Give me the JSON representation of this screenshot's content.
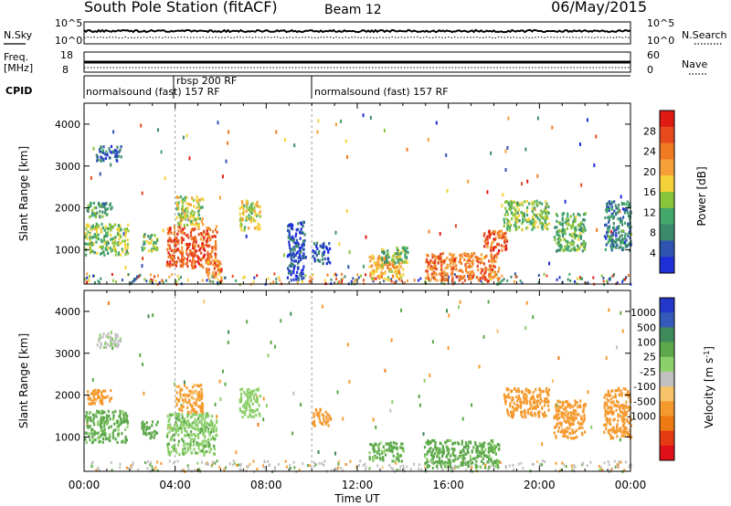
{
  "header": {
    "title": "South Pole Station (fitACF)",
    "beam": "Beam 12",
    "date": "06/May/2015"
  },
  "noise_panel": {
    "left_label": "N.Sky",
    "right_label": "N.Search",
    "left_ticks": [
      "10^5",
      "10^0"
    ],
    "right_ticks": [
      "10^5",
      "10^0"
    ]
  },
  "freq_panel": {
    "left_label_line1": "Freq.",
    "left_label_line2": "[MHz]",
    "right_label": "Nave",
    "left_ticks": [
      "18",
      "8"
    ],
    "right_ticks": [
      "60",
      "0"
    ]
  },
  "cpid": {
    "label": "CPID",
    "segments": [
      {
        "start_hour": 0,
        "end_hour": 4,
        "label": "normalsound (fast) 157 RF"
      },
      {
        "start_hour": 4,
        "end_hour": 10,
        "label": "rbsp 200 RF"
      },
      {
        "start_hour": 10,
        "end_hour": 24,
        "label": "normalsound (fast) 157 RF"
      }
    ]
  },
  "colors": {
    "power_scale": [
      "#1f2fd8",
      "#2e54b0",
      "#3c8a6c",
      "#43a66a",
      "#8ac43a",
      "#f6d23a",
      "#f6a03a",
      "#f07a22",
      "#e64a1e",
      "#e01b14"
    ],
    "velocity_scale": [
      "#2337c8",
      "#3559b8",
      "#3f8a5a",
      "#5ca84a",
      "#8cd06a",
      "#c0c0c0",
      "#f6c36a",
      "#f59a2e",
      "#ee7a14",
      "#e63a12",
      "#e0101a"
    ]
  },
  "chart_data": [
    {
      "type": "heatmap",
      "title": "Power",
      "ylabel": "Slant Range [km]",
      "xlabel": "Time UT",
      "xlim_hours": [
        0,
        24
      ],
      "ylim": [
        180,
        4500
      ],
      "x_ticks": [
        "00:00",
        "04:00",
        "08:00",
        "12:00",
        "16:00",
        "20:00",
        "00:00"
      ],
      "y_ticks": [
        1000,
        2000,
        3000,
        4000
      ],
      "colorbar": {
        "label": "Power [dB]",
        "ticks": [
          4,
          8,
          12,
          16,
          20,
          24,
          28
        ],
        "range": [
          0,
          32
        ]
      },
      "regions": [
        {
          "t0": 0.0,
          "t1": 1.9,
          "r0": 900,
          "r1": 1650,
          "value": 14
        },
        {
          "t0": 0.1,
          "t1": 1.2,
          "r0": 1800,
          "r1": 2150,
          "value": 10
        },
        {
          "t0": 0.5,
          "t1": 1.6,
          "r0": 3150,
          "r1": 3500,
          "value": 6
        },
        {
          "t0": 2.5,
          "t1": 3.2,
          "r0": 1000,
          "r1": 1400,
          "value": 14
        },
        {
          "t0": 3.6,
          "t1": 5.8,
          "r0": 600,
          "r1": 1600,
          "value": 26
        },
        {
          "t0": 4.0,
          "t1": 5.2,
          "r0": 1600,
          "r1": 2300,
          "value": 16
        },
        {
          "t0": 5.3,
          "t1": 6.0,
          "r0": 350,
          "r1": 800,
          "value": 22
        },
        {
          "t0": 6.8,
          "t1": 7.7,
          "r0": 1500,
          "r1": 2200,
          "value": 16
        },
        {
          "t0": 8.9,
          "t1": 9.7,
          "r0": 300,
          "r1": 1700,
          "value": 4
        },
        {
          "t0": 10.0,
          "t1": 10.8,
          "r0": 700,
          "r1": 1200,
          "value": 4
        },
        {
          "t0": 12.5,
          "t1": 14.0,
          "r0": 300,
          "r1": 900,
          "value": 20
        },
        {
          "t0": 13.0,
          "t1": 14.2,
          "r0": 700,
          "r1": 1100,
          "value": 12
        },
        {
          "t0": 14.9,
          "t1": 18.2,
          "r0": 300,
          "r1": 950,
          "value": 24
        },
        {
          "t0": 17.5,
          "t1": 18.6,
          "r0": 1000,
          "r1": 1500,
          "value": 26
        },
        {
          "t0": 18.4,
          "t1": 20.4,
          "r0": 1500,
          "r1": 2200,
          "value": 14
        },
        {
          "t0": 20.6,
          "t1": 22.0,
          "r0": 1000,
          "r1": 1900,
          "value": 12
        },
        {
          "t0": 22.8,
          "t1": 24.0,
          "r0": 1000,
          "r1": 2200,
          "value": 8
        }
      ]
    },
    {
      "type": "heatmap",
      "title": "Velocity",
      "ylabel": "Slant Range [km]",
      "xlabel": "Time UT",
      "xlim_hours": [
        0,
        24
      ],
      "ylim": [
        180,
        4500
      ],
      "x_ticks": [
        "00:00",
        "04:00",
        "08:00",
        "12:00",
        "16:00",
        "20:00",
        "00:00"
      ],
      "y_ticks": [
        1000,
        2000,
        3000,
        4000
      ],
      "colorbar": {
        "label": "Velocity [m s",
        "label_sup": "-1",
        "label_end": "]",
        "ticks": [
          "1000",
          "500",
          "100",
          "25",
          "-25",
          "-100",
          "-500",
          "-1000"
        ]
      },
      "regions": [
        {
          "t0": 0.0,
          "t1": 1.9,
          "r0": 900,
          "r1": 1650,
          "value": 150
        },
        {
          "t0": 0.1,
          "t1": 1.2,
          "r0": 1800,
          "r1": 2150,
          "value": -300
        },
        {
          "t0": 0.5,
          "t1": 1.6,
          "r0": 3150,
          "r1": 3500,
          "value": 10
        },
        {
          "t0": 2.5,
          "t1": 3.2,
          "r0": 1000,
          "r1": 1400,
          "value": 200
        },
        {
          "t0": 3.6,
          "t1": 5.8,
          "r0": 600,
          "r1": 1600,
          "value": 80
        },
        {
          "t0": 4.0,
          "t1": 5.2,
          "r0": 1600,
          "r1": 2300,
          "value": -150
        },
        {
          "t0": 6.8,
          "t1": 7.7,
          "r0": 1500,
          "r1": 2200,
          "value": 60
        },
        {
          "t0": 10.0,
          "t1": 10.8,
          "r0": 1300,
          "r1": 1700,
          "value": -300
        },
        {
          "t0": 12.5,
          "t1": 14.0,
          "r0": 450,
          "r1": 900,
          "value": 120
        },
        {
          "t0": 14.9,
          "t1": 18.2,
          "r0": 300,
          "r1": 950,
          "value": 150
        },
        {
          "t0": 18.4,
          "t1": 20.4,
          "r0": 1500,
          "r1": 2200,
          "value": -300
        },
        {
          "t0": 20.6,
          "t1": 22.0,
          "r0": 1000,
          "r1": 1900,
          "value": -300
        },
        {
          "t0": 22.8,
          "t1": 24.0,
          "r0": 1000,
          "r1": 2200,
          "value": -300
        }
      ]
    }
  ]
}
